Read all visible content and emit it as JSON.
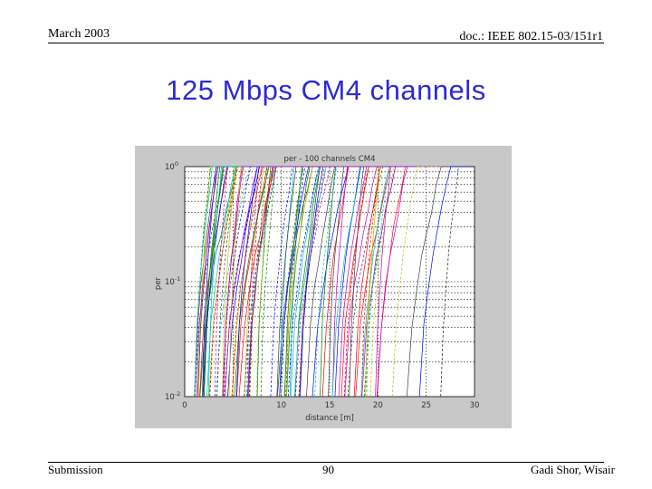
{
  "header": {
    "date": "March 2003",
    "doc_id": "doc.: IEEE 802.15-03/151r1"
  },
  "slide": {
    "title": "125 Mbps CM4 channels"
  },
  "figure": {
    "plot_title": "per - 100 channels CM4",
    "xlabel": "distance [m]",
    "ylabel": "per",
    "xticks": [
      "0",
      "10",
      "15",
      "20",
      "25",
      "30"
    ],
    "yticks": [
      {
        "base": "10",
        "exp": "0"
      },
      {
        "base": "10",
        "exp": "-1"
      },
      {
        "base": "10",
        "exp": "-2"
      }
    ],
    "colors": [
      "#0000ff",
      "#008000",
      "#ff0000",
      "#00bfbf",
      "#bf00bf",
      "#bfbf00",
      "#404040"
    ]
  },
  "chart_data": {
    "type": "line",
    "title": "per - 100 channels CM4",
    "xlabel": "distance [m]",
    "ylabel": "per",
    "yscale": "log",
    "xlim": [
      0,
      30
    ],
    "ylim": [
      0.01,
      1
    ],
    "grid": true,
    "series_count": 100,
    "approx_onset_distance_range_m": [
      1,
      29
    ],
    "note_values": "Per-channel PER curves rise from 1e-2 to 1e0 over roughly 1-4 m; onset distances spread mostly between about 1 m and 20 m, with the last curves near 24-29 m."
  },
  "footer": {
    "left": "Submission",
    "page": "90",
    "author": "Gadi Shor, Wisair"
  }
}
